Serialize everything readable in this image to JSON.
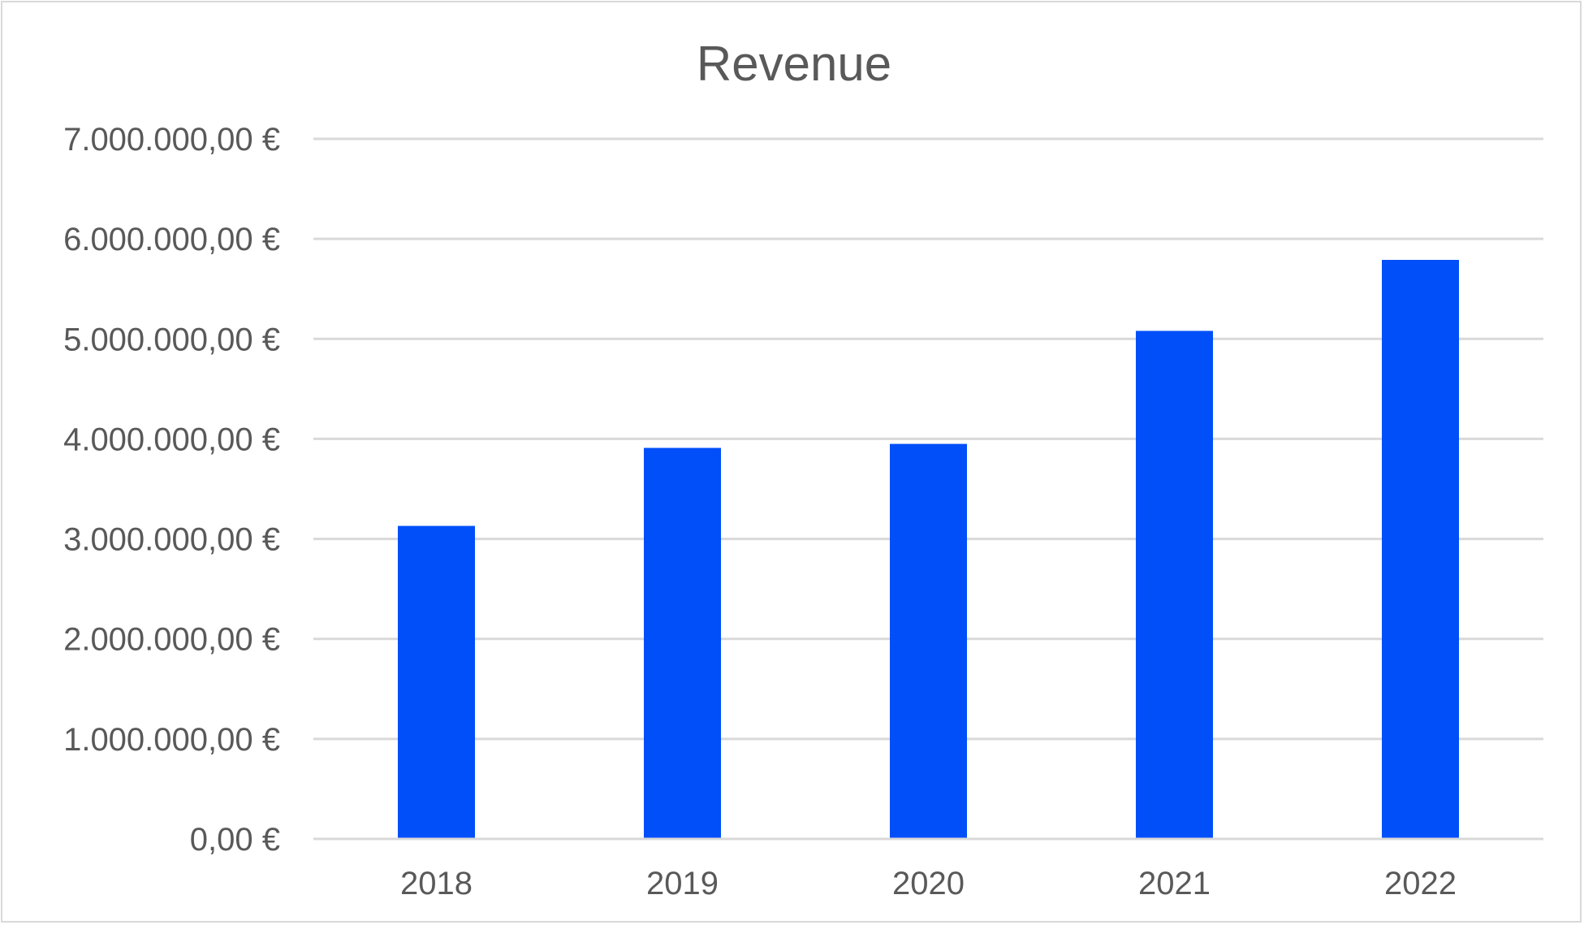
{
  "chart_data": {
    "type": "bar",
    "title": "Revenue",
    "xlabel": "",
    "ylabel": "",
    "categories": [
      "2018",
      "2019",
      "2020",
      "2021",
      "2022"
    ],
    "values": [
      3130000,
      3910000,
      3950000,
      5080000,
      5790000
    ],
    "ylim": [
      0,
      7000000
    ],
    "yticks": [
      0,
      1000000,
      2000000,
      3000000,
      4000000,
      5000000,
      6000000,
      7000000
    ],
    "ytick_labels": [
      "0,00 €",
      "1.000.000,00 €",
      "2.000.000,00 €",
      "3.000.000,00 €",
      "4.000.000,00 €",
      "5.000.000,00 €",
      "6.000.000,00 €",
      "7.000.000,00 €"
    ],
    "grid": true,
    "legend": "none",
    "bar_color": "#004ff9"
  }
}
